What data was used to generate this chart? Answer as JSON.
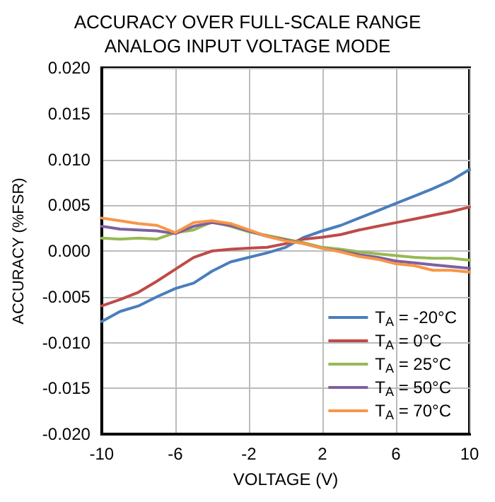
{
  "chart_data": {
    "type": "line",
    "title": "ACCURACY OVER FULL-SCALE RANGE\nANALOG INPUT VOLTAGE MODE",
    "xlabel": "VOLTAGE (V)",
    "ylabel": "ACCURACY (%FSR)",
    "x": [
      -10,
      -9,
      -8,
      -7,
      -6,
      -5,
      -4,
      -3,
      -2,
      -1,
      0,
      1,
      2,
      3,
      4,
      5,
      6,
      7,
      8,
      9,
      10
    ],
    "series": [
      {
        "name": "T$_{A}$ = -20°C",
        "color": "#4a7ebb",
        "values": [
          -0.0077,
          -0.0066,
          -0.006,
          -0.005,
          -0.0041,
          -0.0035,
          -0.0022,
          -0.0012,
          -0.0007,
          -0.0002,
          0.0004,
          0.0015,
          0.0022,
          0.0028,
          0.0036,
          0.0044,
          0.0052,
          0.006,
          0.0068,
          0.0077,
          0.0089
        ]
      },
      {
        "name": "T$_{A}$ = 0°C",
        "color": "#be4b48",
        "values": [
          -0.006,
          -0.0053,
          -0.0045,
          -0.0033,
          -0.002,
          -0.0007,
          0.0,
          0.0002,
          0.0003,
          0.0004,
          0.0008,
          0.0013,
          0.0015,
          0.0018,
          0.0023,
          0.0027,
          0.0031,
          0.0035,
          0.0039,
          0.0043,
          0.0048
        ]
      },
      {
        "name": "T$_{A}$ = 25°C",
        "color": "#98b954",
        "values": [
          0.0014,
          0.0013,
          0.0014,
          0.0013,
          0.002,
          0.0023,
          0.0032,
          0.0027,
          0.0021,
          0.0017,
          0.0013,
          0.0009,
          0.0004,
          0.0002,
          -0.0001,
          -0.0003,
          -0.0005,
          -0.0007,
          -0.0008,
          -0.0008,
          -0.001
        ]
      },
      {
        "name": "T$_{A}$ = 50°C",
        "color": "#7d60a0",
        "values": [
          0.0027,
          0.0024,
          0.0023,
          0.0022,
          0.0019,
          0.0027,
          0.0031,
          0.0028,
          0.0022,
          0.0016,
          0.0012,
          0.0008,
          0.0003,
          0.0,
          -0.0004,
          -0.0007,
          -0.0011,
          -0.0013,
          -0.0015,
          -0.0017,
          -0.0019
        ]
      },
      {
        "name": "T$_{A}$ = 70°C",
        "color": "#f79646",
        "values": [
          0.0036,
          0.0033,
          0.003,
          0.0028,
          0.002,
          0.0031,
          0.0033,
          0.003,
          0.0023,
          0.0016,
          0.0011,
          0.0008,
          0.0003,
          -0.0001,
          -0.0006,
          -0.0009,
          -0.0014,
          -0.0016,
          -0.0021,
          -0.0021,
          -0.0023
        ]
      }
    ],
    "xlim": [
      -10,
      10
    ],
    "xticks": [
      -10,
      -6,
      -2,
      2,
      6,
      10
    ],
    "ylim": [
      -0.02,
      0.02
    ],
    "yticks": [
      {
        "value": -0.02,
        "label": "-0.020"
      },
      {
        "value": -0.015,
        "label": "-0.015"
      },
      {
        "value": -0.01,
        "label": "-0.010"
      },
      {
        "value": -0.005,
        "label": "-0.005"
      },
      {
        "value": 0,
        "label": "0.000"
      },
      {
        "value": 0.005,
        "label": "0.005"
      },
      {
        "value": 0.01,
        "label": "0.010"
      },
      {
        "value": 0.015,
        "label": "0.015"
      },
      {
        "value": 0.02,
        "label": "0.020"
      }
    ],
    "grid": true,
    "legend": "bottom right",
    "marker": "none",
    "line_style": "solid"
  }
}
